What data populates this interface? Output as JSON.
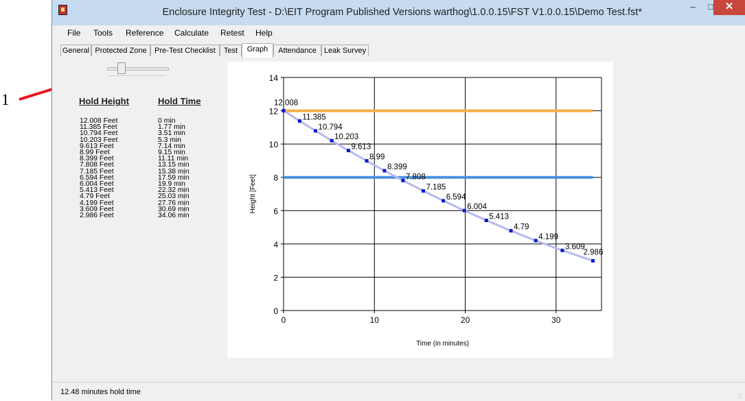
{
  "callout": {
    "label": "1"
  },
  "window": {
    "title": "Enclosure Integrity Test - D:\\EIT Program Published Versions warthog\\1.0.0.15\\FST V1.0.0.15\\Demo Test.fst*",
    "min_glyph": "–",
    "max_glyph": "□",
    "close_glyph": "✕"
  },
  "menu": [
    "File",
    "Tools",
    "Reference",
    "Calculate",
    "Retest",
    "Help"
  ],
  "tabs": [
    "General",
    "Protected Zone",
    "Pre-Test Checklist",
    "Test",
    "Graph",
    "Attendance",
    "Leak Survey"
  ],
  "active_tab": "Graph",
  "table": {
    "height_header": "Hold Height",
    "time_header": "Hold Time",
    "heights": [
      "12.008 Feet",
      "11.385 Feet",
      "10.794 Feet",
      "10.203 Feet",
      "9.613 Feet",
      "8.99 Feet",
      "8.399 Feet",
      "7.808 Feet",
      "7.185 Feet",
      "6.594 Feet",
      "6.004 Feet",
      "5.413 Feet",
      "4.79 Feet",
      "4.199 Feet",
      "3.609 Feet",
      "2.986 Feet"
    ],
    "times": [
      "0 min",
      "1.77 min",
      "3.51 min",
      "5.3 min",
      "7.14 min",
      "9.15 min",
      "11.11 min",
      "13.15 min",
      "15.38 min",
      "17.59 min",
      "19.9 min",
      "22.32 min",
      "25.03 min",
      "27.76 min",
      "30.69 min",
      "34.06 min"
    ]
  },
  "chart_data": {
    "type": "line",
    "xlabel": "Time (in minutes)",
    "ylabel": "Height [Feet]",
    "xlim": [
      0,
      35
    ],
    "ylim": [
      0,
      14
    ],
    "xticks": [
      0,
      10,
      20,
      30
    ],
    "yticks": [
      0,
      2,
      4,
      6,
      8,
      10,
      12,
      14
    ],
    "grid": true,
    "series": [
      {
        "x": [
          0,
          1.77,
          3.51,
          5.3,
          7.14,
          9.15,
          11.11,
          13.15,
          15.38,
          17.59,
          19.9,
          22.32,
          25.03,
          27.76,
          30.69,
          34.06
        ],
        "y": [
          12.008,
          11.385,
          10.794,
          10.203,
          9.613,
          8.99,
          8.399,
          7.808,
          7.185,
          6.594,
          6.004,
          5.413,
          4.79,
          4.199,
          3.609,
          2.986
        ],
        "labels": [
          "12.008",
          "11.385",
          "10.794",
          "10.203",
          "9.613",
          "8.99",
          "8.399",
          "7.808",
          "7.185",
          "6.594",
          "6.004",
          "5.413",
          "4.79",
          "4.199",
          "3.609",
          "2.986"
        ],
        "color": "#0a1ccc",
        "line_color": "#b5b9f0"
      }
    ],
    "hlines": [
      {
        "y": 12,
        "x_end": 34.06,
        "color": "#f5b041"
      },
      {
        "y": 8,
        "x_end": 34.06,
        "color": "#4a90e2"
      }
    ]
  },
  "status": {
    "text": "12.48 minutes hold time",
    "grip": ".::"
  }
}
